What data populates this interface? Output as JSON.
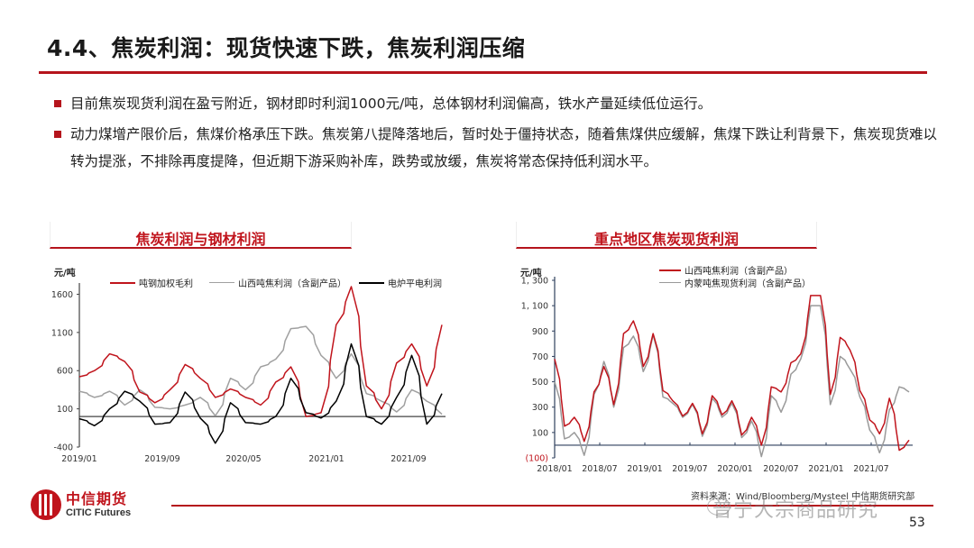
{
  "slide": {
    "title": "4.4、焦炭利润：现货快速下跌，焦炭利润压缩",
    "bullets": [
      "目前焦炭现货利润在盈亏附近，钢材即时利润1000元/吨，总体钢材利润偏高，铁水产量延续低位运行。",
      "动力煤增产限价后，焦煤价格承压下跌。焦炭第八提降落地后，暂时处于僵持状态，随着焦煤供应缓解，焦煤下跌让利背景下，焦炭现货难以转为提涨，不排除再度提降，但近期下游采购补库，跌势或放缓，焦炭将常态保持低利润水平。"
    ],
    "accent_color": "#b5141c"
  },
  "footer": {
    "logo_cn": "中信期货",
    "logo_en": "CITIC Futures",
    "source": "资料来源：Wind/Bloomberg/Mysteel 中信期货研究部",
    "watermark": "普宁大宗商品研究",
    "page_number": "53"
  },
  "chart_data": [
    {
      "type": "line",
      "title": "焦炭利润与钢材利润",
      "ylabel": "元/吨",
      "xlabel": "",
      "ylim": [
        -400,
        1700
      ],
      "yticks": [
        1600,
        1100,
        600,
        100,
        -400
      ],
      "xticks": [
        "2019/01",
        "2019/09",
        "2020/05",
        "2021/01",
        "2021/09"
      ],
      "grid": false,
      "legend_position": "top",
      "zero_line": true,
      "x": [
        "2019/01",
        "2019/03",
        "2019/05",
        "2019/06",
        "2019/08",
        "2019/10",
        "2019/12",
        "2020/02",
        "2020/04",
        "2020/06",
        "2020/08",
        "2020/10",
        "2020/12",
        "2021/01",
        "2021/02",
        "2021/03",
        "2021/04",
        "2021/05",
        "2021/06",
        "2021/07",
        "2021/08",
        "2021/09",
        "2021/10",
        "2021/11",
        "2021/12"
      ],
      "series": [
        {
          "name": "吨钢加权毛利",
          "color": "#c0141c",
          "values": [
            520,
            600,
            820,
            720,
            320,
            180,
            350,
            680,
            500,
            250,
            360,
            250,
            150,
            450,
            650,
            0,
            50,
            1200,
            1700,
            400,
            100,
            700,
            950,
            400,
            1200
          ]
        },
        {
          "name": "山西吨焦利润（含副产品）",
          "color": "#a0a0a0",
          "values": [
            330,
            250,
            330,
            150,
            350,
            120,
            100,
            150,
            250,
            10,
            500,
            350,
            650,
            750,
            1150,
            1180,
            800,
            500,
            820,
            300,
            200,
            60,
            350,
            200,
            30
          ]
        },
        {
          "name": "电炉平电利润",
          "color": "#000000",
          "values": [
            -30,
            -120,
            100,
            330,
            200,
            -100,
            -80,
            320,
            -20,
            -350,
            180,
            -80,
            -100,
            0,
            500,
            50,
            -20,
            200,
            950,
            0,
            -100,
            250,
            800,
            -100,
            300
          ]
        }
      ]
    },
    {
      "type": "line",
      "title": "重点地区焦炭现货利润",
      "ylabel": "元/吨",
      "xlabel": "",
      "ylim": [
        -100,
        1300
      ],
      "yticks": [
        "1, 300",
        "1, 100",
        "900",
        "700",
        "500",
        "300",
        "100",
        "(100)"
      ],
      "xticks": [
        "2018/01",
        "2018/07",
        "2019/01",
        "2019/07",
        "2020/01",
        "2020/07",
        "2021/01",
        "2021/07"
      ],
      "grid": false,
      "legend_position": "top",
      "zero_line": true,
      "x": [
        "2018/01",
        "2018/02",
        "2018/03",
        "2018/04",
        "2018/05",
        "2018/06",
        "2018/07",
        "2018/08",
        "2018/09",
        "2018/10",
        "2018/11",
        "2018/12",
        "2019/01",
        "2019/03",
        "2019/05",
        "2019/06",
        "2019/08",
        "2019/10",
        "2019/12",
        "2020/02",
        "2020/04",
        "2020/06",
        "2020/08",
        "2020/10",
        "2020/12",
        "2021/01",
        "2021/02",
        "2021/03",
        "2021/04",
        "2021/05",
        "2021/06",
        "2021/07",
        "2021/08",
        "2021/09",
        "2021/10",
        "2021/11",
        "2021/12"
      ],
      "series": [
        {
          "name": "山西吨焦利润（含副产品）",
          "color": "#c0141c",
          "values": [
            680,
            150,
            220,
            30,
            420,
            620,
            320,
            880,
            980,
            620,
            880,
            430,
            350,
            230,
            330,
            90,
            390,
            240,
            350,
            80,
            220,
            0,
            460,
            420,
            650,
            720,
            1180,
            1180,
            400,
            850,
            750,
            430,
            200,
            90,
            370,
            -40,
            40
          ]
        },
        {
          "name": "内蒙吨焦现货利润（含副产品）",
          "color": "#9a9a9a",
          "values": [
            500,
            50,
            100,
            -80,
            400,
            660,
            300,
            770,
            860,
            580,
            870,
            380,
            330,
            220,
            320,
            70,
            370,
            220,
            330,
            60,
            190,
            -90,
            390,
            260,
            560,
            680,
            1100,
            1100,
            320,
            700,
            600,
            380,
            120,
            -60,
            280,
            460,
            420
          ]
        }
      ]
    }
  ]
}
